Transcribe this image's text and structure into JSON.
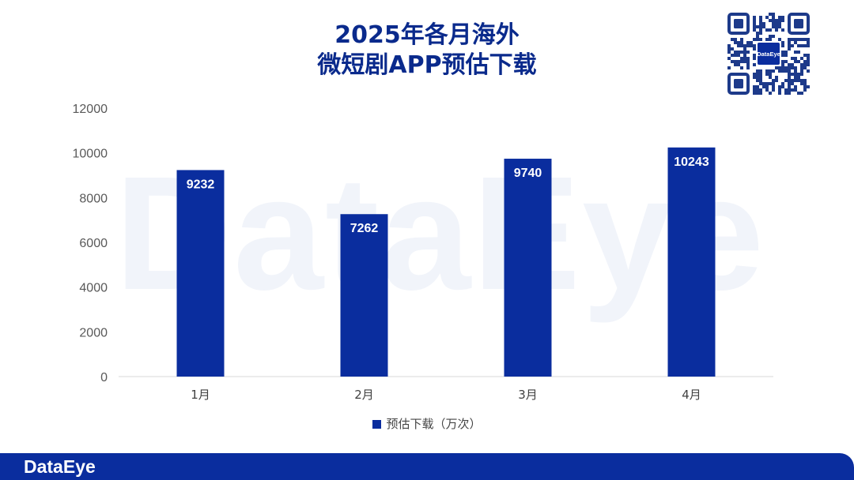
{
  "title": {
    "line1": "2025年各月海外",
    "line2": "微短剧APP预估下载"
  },
  "watermark": "DataEye",
  "qr_label": "DataEye",
  "footer": {
    "logo": "DataEye"
  },
  "chart_data": {
    "type": "bar",
    "title": "2025年各月海外微短剧APP预估下载",
    "categories": [
      "1月",
      "2月",
      "3月",
      "4月"
    ],
    "series": [
      {
        "name": "预估下载（万次）",
        "values": [
          9232,
          7262,
          9740,
          10243
        ]
      }
    ],
    "ylim": [
      0,
      12000
    ],
    "yticks": [
      0,
      2000,
      4000,
      6000,
      8000,
      10000,
      12000
    ],
    "xlabel": "",
    "ylabel": "",
    "grid": false,
    "legend": "bottom",
    "bar_color": "#0a2d9e",
    "label_color": "#ffffff"
  }
}
